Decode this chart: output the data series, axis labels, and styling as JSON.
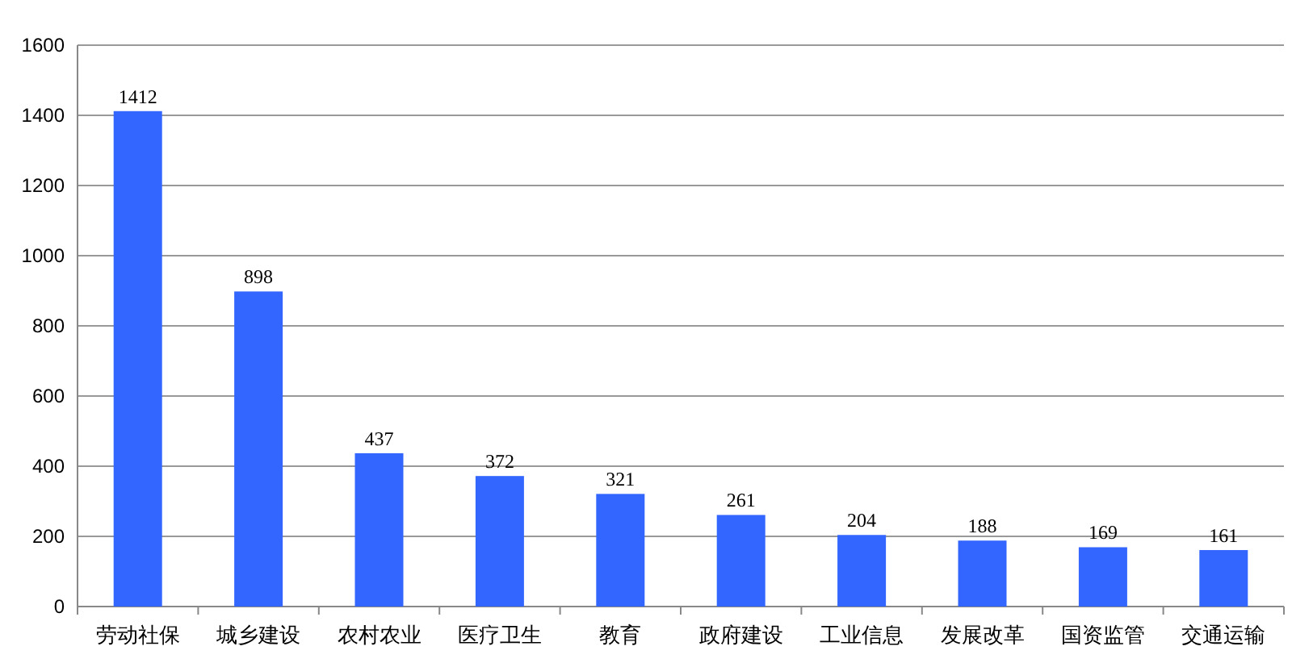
{
  "chart_data": {
    "type": "bar",
    "categories": [
      "劳动社保",
      "城乡建设",
      "农村农业",
      "医疗卫生",
      "教育",
      "政府建设",
      "工业信息",
      "发展改革",
      "国资监管",
      "交通运输"
    ],
    "values": [
      1412,
      898,
      437,
      372,
      321,
      261,
      204,
      188,
      169,
      161
    ],
    "color": "#3366ff",
    "ylim": [
      0,
      1600
    ],
    "yticks": [
      0,
      200,
      400,
      600,
      800,
      1000,
      1200,
      1400,
      1600
    ],
    "grid": "y",
    "data_labels": true
  }
}
